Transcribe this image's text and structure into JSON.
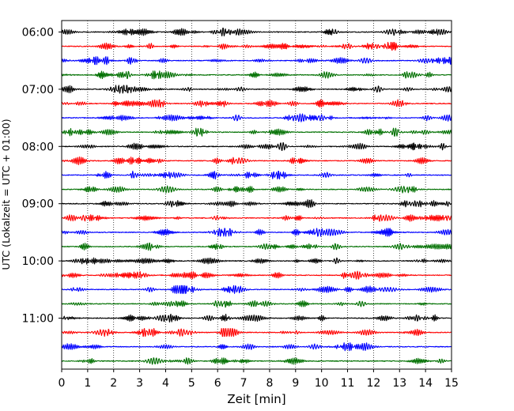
{
  "chart_data": {
    "type": "line",
    "title": "",
    "xlabel": "Zeit  [min]",
    "ylabel": "UTC (Lokalzeit = UTC + 01:00)",
    "xlim": [
      0,
      15
    ],
    "x_ticks": [
      "0",
      "1",
      "2",
      "3",
      "4",
      "5",
      "6",
      "7",
      "8",
      "9",
      "10",
      "11",
      "12",
      "13",
      "14",
      "15"
    ],
    "y_tick_labels": [
      "06:00",
      "07:00",
      "08:00",
      "09:00",
      "10:00",
      "11:00"
    ],
    "grid": "vertical dotted lines at each minute",
    "trace_colors": [
      "#000000",
      "#ff0000",
      "#0000ff",
      "#007000"
    ],
    "trace_count": 24,
    "trace_interval_minutes": 15,
    "first_trace": "06:00",
    "last_trace": "11:45"
  }
}
